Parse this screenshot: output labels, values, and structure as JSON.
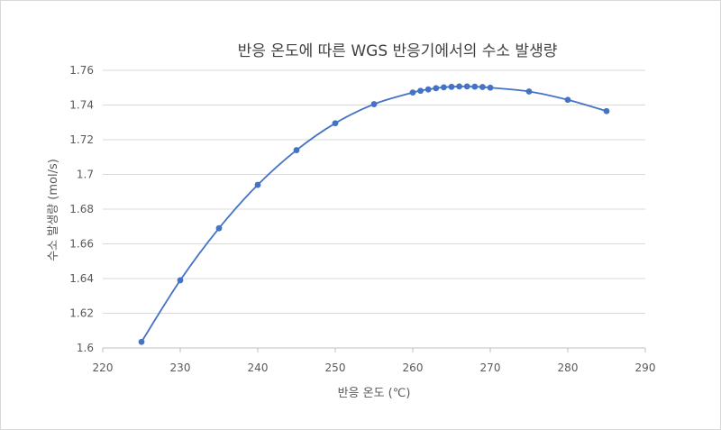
{
  "chart_data": {
    "type": "scatter",
    "title": "반응 온도에 따른 WGS 반응기에서의 수소 발생량",
    "xlabel": "반응 온도 (℃)",
    "ylabel": "수소 발생량 (mol/s)",
    "xlim": [
      220,
      290
    ],
    "ylim": [
      1.6,
      1.76
    ],
    "x_ticks": [
      "220",
      "230",
      "240",
      "250",
      "260",
      "270",
      "280",
      "290"
    ],
    "y_ticks": [
      "1.6",
      "1.62",
      "1.64",
      "1.66",
      "1.68",
      "1.7",
      "1.72",
      "1.74",
      "1.76"
    ],
    "grid": "horizontal",
    "smooth_line": true,
    "marker": "circle",
    "color": "#4472c4",
    "series": [
      {
        "x": [
          225,
          230,
          235,
          240,
          245,
          250,
          255,
          260,
          261,
          262,
          263,
          264,
          265,
          266,
          267,
          268,
          269,
          270,
          275,
          280,
          285
        ],
        "y": [
          1.6035,
          1.639,
          1.669,
          1.694,
          1.714,
          1.7295,
          1.7405,
          1.7472,
          1.7482,
          1.749,
          1.7497,
          1.7502,
          1.7505,
          1.7507,
          1.7507,
          1.7506,
          1.7504,
          1.75,
          1.7478,
          1.743,
          1.7365
        ]
      }
    ]
  }
}
